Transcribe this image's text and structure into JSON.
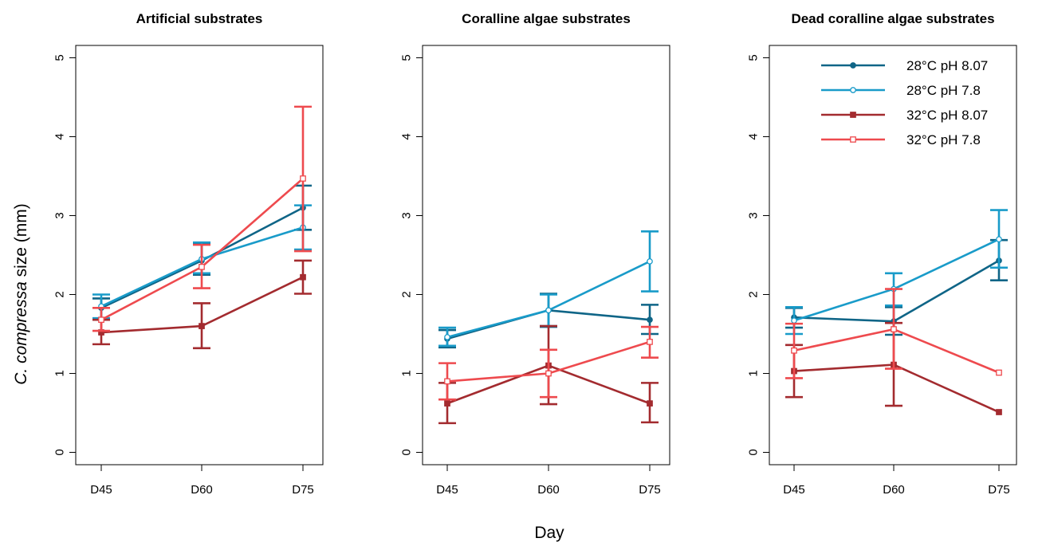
{
  "figure": {
    "ylabel_italic": "C. compressa",
    "ylabel_rest": " size (mm)",
    "xlabel": "Day"
  },
  "colors": {
    "28C_pH8.07": "#0f6587",
    "28C_pH7.8": "#199bc9",
    "32C_pH8.07": "#a32b2f",
    "32C_pH7.8": "#ee4a4e"
  },
  "chart_data": [
    {
      "type": "line",
      "title": "Artificial substrates",
      "categories": [
        "D45",
        "D60",
        "D75"
      ],
      "ylim": [
        0,
        5
      ],
      "yticks": [
        0,
        1,
        2,
        3,
        4,
        5
      ],
      "grid": false,
      "series": [
        {
          "name": "28°C pH 8.07",
          "marker": "filled-circle",
          "values": [
            1.83,
            2.43,
            3.1
          ],
          "err_low": [
            1.68,
            2.25,
            2.82
          ],
          "err_high": [
            1.95,
            2.65,
            3.38
          ]
        },
        {
          "name": "28°C pH 7.8",
          "marker": "open-circle",
          "values": [
            1.85,
            2.45,
            2.85
          ],
          "err_low": [
            1.7,
            2.27,
            2.57
          ],
          "err_high": [
            2.0,
            2.66,
            3.13
          ]
        },
        {
          "name": "32°C pH 8.07",
          "marker": "filled-square",
          "values": [
            1.52,
            1.6,
            2.22
          ],
          "err_low": [
            1.37,
            1.32,
            2.01
          ],
          "err_high": [
            1.68,
            1.89,
            2.43
          ]
        },
        {
          "name": "32°C pH 7.8",
          "marker": "open-square",
          "values": [
            1.68,
            2.35,
            3.47
          ],
          "err_low": [
            1.54,
            2.08,
            2.55
          ],
          "err_high": [
            1.83,
            2.63,
            4.38
          ]
        }
      ]
    },
    {
      "type": "line",
      "title": "Coralline algae substrates",
      "categories": [
        "D45",
        "D60",
        "D75"
      ],
      "ylim": [
        0,
        5
      ],
      "yticks": [
        0,
        1,
        2,
        3,
        4,
        5
      ],
      "grid": false,
      "series": [
        {
          "name": "28°C pH 8.07",
          "marker": "filled-circle",
          "values": [
            1.44,
            1.8,
            1.68
          ],
          "err_low": [
            1.33,
            1.59,
            1.5
          ],
          "err_high": [
            1.55,
            2.01,
            1.87
          ]
        },
        {
          "name": "28°C pH 7.8",
          "marker": "open-circle",
          "values": [
            1.46,
            1.8,
            2.42
          ],
          "err_low": [
            1.35,
            1.6,
            2.04
          ],
          "err_high": [
            1.58,
            2.0,
            2.8
          ]
        },
        {
          "name": "32°C pH 8.07",
          "marker": "filled-square",
          "values": [
            0.62,
            1.1,
            0.62
          ],
          "err_low": [
            0.37,
            0.61,
            0.38
          ],
          "err_high": [
            0.88,
            1.6,
            0.88
          ]
        },
        {
          "name": "32°C pH 7.8",
          "marker": "open-square",
          "values": [
            0.9,
            1.0,
            1.4
          ],
          "err_low": [
            0.67,
            0.7,
            1.2
          ],
          "err_high": [
            1.13,
            1.3,
            1.59
          ]
        }
      ]
    },
    {
      "type": "line",
      "title": "Dead coralline algae substrates",
      "categories": [
        "D45",
        "D60",
        "D75"
      ],
      "ylim": [
        0,
        5
      ],
      "yticks": [
        0,
        1,
        2,
        3,
        4,
        5
      ],
      "grid": false,
      "legend_position": "top-right",
      "series": [
        {
          "name": "28°C pH 8.07",
          "marker": "filled-circle",
          "values": [
            1.71,
            1.66,
            2.43
          ],
          "err_low": [
            1.58,
            1.49,
            2.18
          ],
          "err_high": [
            1.83,
            1.84,
            2.69
          ]
        },
        {
          "name": "28°C pH 7.8",
          "marker": "open-circle",
          "values": [
            1.67,
            2.07,
            2.7
          ],
          "err_low": [
            1.5,
            1.86,
            2.34
          ],
          "err_high": [
            1.84,
            2.27,
            3.07
          ]
        },
        {
          "name": "32°C pH 8.07",
          "marker": "filled-square",
          "values": [
            1.03,
            1.11,
            0.51
          ],
          "err_low": [
            0.7,
            0.59,
            0.51
          ],
          "err_high": [
            1.36,
            1.64,
            0.51
          ]
        },
        {
          "name": "32°C pH 7.8",
          "marker": "open-square",
          "values": [
            1.29,
            1.56,
            1.01
          ],
          "err_low": [
            0.94,
            1.06,
            1.01
          ],
          "err_high": [
            1.63,
            2.07,
            1.01
          ]
        }
      ]
    }
  ]
}
